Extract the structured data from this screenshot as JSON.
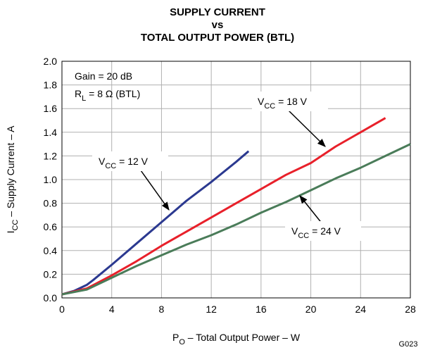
{
  "chart_data": {
    "type": "line",
    "title": [
      "SUPPLY CURRENT",
      "vs",
      "TOTAL OUTPUT POWER (BTL)"
    ],
    "xlabel": {
      "main": "P",
      "sub": "O",
      "rest": " – Total Output Power – W"
    },
    "ylabel": {
      "main": "I",
      "sub": "CC",
      "rest": " – Supply Current – A"
    },
    "annotations": [
      {
        "main": "Gain = 20 dB"
      },
      {
        "main": "R",
        "sub": "L",
        "rest": " = 8 Ω (BTL)"
      }
    ],
    "figure_id": "G023",
    "xlim": [
      0,
      28
    ],
    "xticks": [
      0,
      4,
      8,
      12,
      16,
      20,
      24,
      28
    ],
    "ylim": [
      0,
      2
    ],
    "yticks": [
      {
        "value": 0,
        "label": "0.0"
      },
      {
        "value": 0.2,
        "label": "0.2"
      },
      {
        "value": 0.4,
        "label": "0.4"
      },
      {
        "value": 0.6,
        "label": "0.6"
      },
      {
        "value": 0.8,
        "label": "0.8"
      },
      {
        "value": 1,
        "label": "1.0"
      },
      {
        "value": 1.2,
        "label": "1.2"
      },
      {
        "value": 1.4,
        "label": "1.4"
      },
      {
        "value": 1.6,
        "label": "1.6"
      },
      {
        "value": 1.8,
        "label": "1.8"
      },
      {
        "value": 2,
        "label": "2.0"
      }
    ],
    "grid": true,
    "series": [
      {
        "name": {
          "main": "V",
          "sub": "CC",
          "rest": " = 12 V"
        },
        "color": "#2b3990",
        "x": [
          0,
          1,
          2,
          2.5,
          4,
          6,
          8,
          10,
          12,
          14,
          15
        ],
        "values": [
          0.03,
          0.06,
          0.11,
          0.15,
          0.28,
          0.46,
          0.64,
          0.82,
          0.98,
          1.15,
          1.24
        ]
      },
      {
        "name": {
          "main": "V",
          "sub": "CC",
          "rest": " = 18 V"
        },
        "color": "#e8202a",
        "x": [
          0,
          2,
          4,
          6,
          8,
          10,
          12,
          14,
          16,
          18,
          20,
          22,
          24,
          26
        ],
        "values": [
          0.03,
          0.08,
          0.19,
          0.31,
          0.44,
          0.56,
          0.68,
          0.8,
          0.92,
          1.04,
          1.14,
          1.28,
          1.4,
          1.52
        ]
      },
      {
        "name": {
          "main": "V",
          "sub": "CC",
          "rest": " = 24 V"
        },
        "color": "#4a7c59",
        "x": [
          0,
          2,
          4,
          6,
          8,
          10,
          12,
          14,
          16,
          18,
          20,
          22,
          24,
          26,
          28
        ],
        "values": [
          0.03,
          0.07,
          0.17,
          0.27,
          0.36,
          0.45,
          0.53,
          0.62,
          0.72,
          0.81,
          0.91,
          1.01,
          1.1,
          1.2,
          1.3
        ]
      }
    ]
  }
}
